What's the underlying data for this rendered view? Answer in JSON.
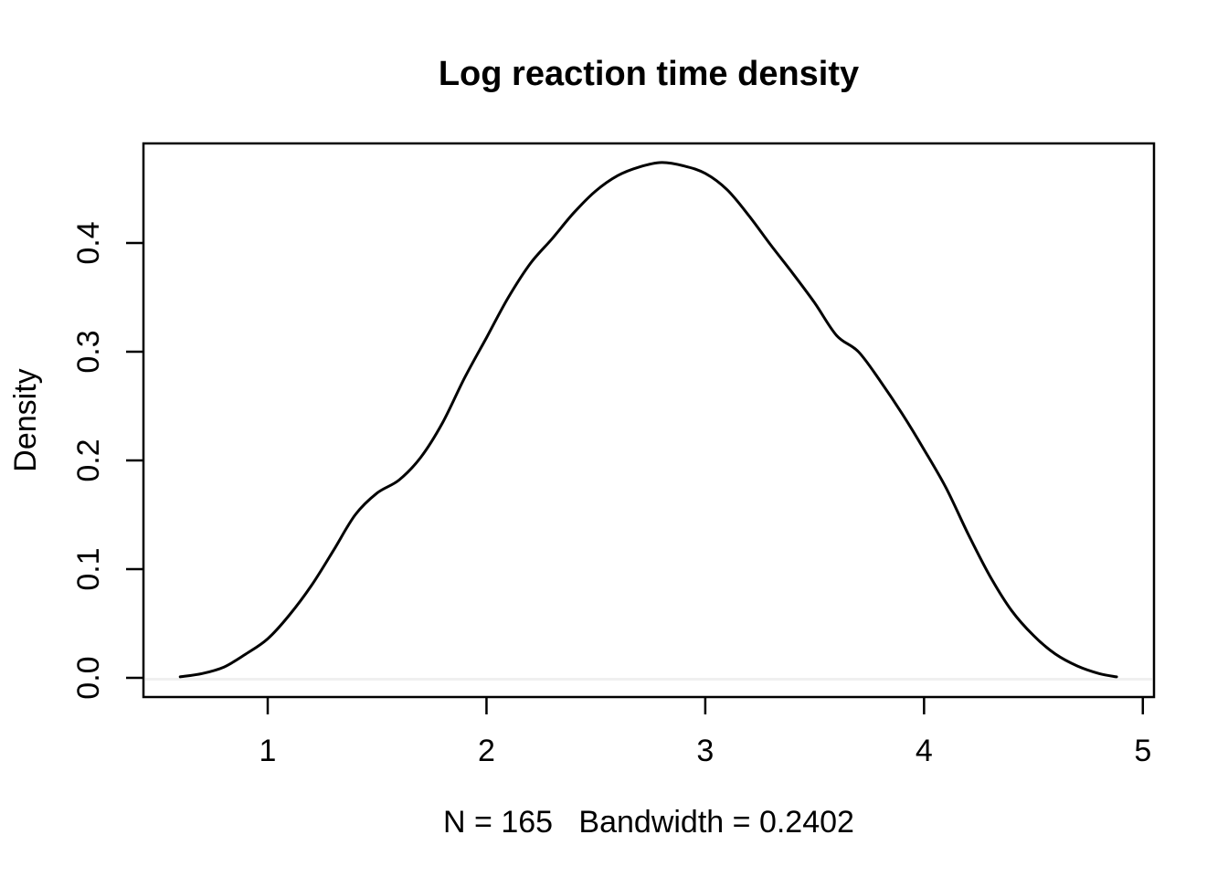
{
  "colors": {
    "curve": "#000000",
    "axis": "#000000",
    "text": "#000000",
    "zero_line": "#f0f0f0",
    "background": "#ffffff"
  },
  "chart_data": {
    "type": "line",
    "title": "Log reaction time density",
    "ylabel": "Density",
    "xlabel": "N = 165   Bandwidth = 0.2402",
    "n": 165,
    "bandwidth": 0.2402,
    "x_ticks": [
      1,
      2,
      3,
      4,
      5
    ],
    "y_ticks": [
      0.0,
      0.1,
      0.2,
      0.3,
      0.4
    ],
    "xlim": [
      0.432,
      5.051
    ],
    "ylim": [
      -0.0176,
      0.4916
    ],
    "grid": false,
    "legend": "none",
    "zero_reference_line": 0.0,
    "series": [
      {
        "name": "density",
        "x": [
          0.6,
          0.7,
          0.8,
          0.9,
          1.0,
          1.1,
          1.2,
          1.3,
          1.4,
          1.5,
          1.6,
          1.7,
          1.8,
          1.9,
          2.0,
          2.1,
          2.2,
          2.3,
          2.4,
          2.5,
          2.6,
          2.7,
          2.8,
          2.9,
          3.0,
          3.1,
          3.2,
          3.3,
          3.4,
          3.5,
          3.6,
          3.7,
          3.8,
          3.9,
          4.0,
          4.1,
          4.2,
          4.3,
          4.4,
          4.5,
          4.6,
          4.7,
          4.8,
          4.88
        ],
        "y": [
          0.001,
          0.004,
          0.01,
          0.022,
          0.036,
          0.058,
          0.085,
          0.117,
          0.15,
          0.17,
          0.182,
          0.203,
          0.235,
          0.276,
          0.313,
          0.35,
          0.381,
          0.404,
          0.428,
          0.448,
          0.462,
          0.47,
          0.474,
          0.471,
          0.464,
          0.449,
          0.425,
          0.398,
          0.372,
          0.345,
          0.315,
          0.3,
          0.273,
          0.243,
          0.21,
          0.175,
          0.133,
          0.094,
          0.062,
          0.039,
          0.022,
          0.011,
          0.004,
          0.001
        ]
      }
    ]
  }
}
